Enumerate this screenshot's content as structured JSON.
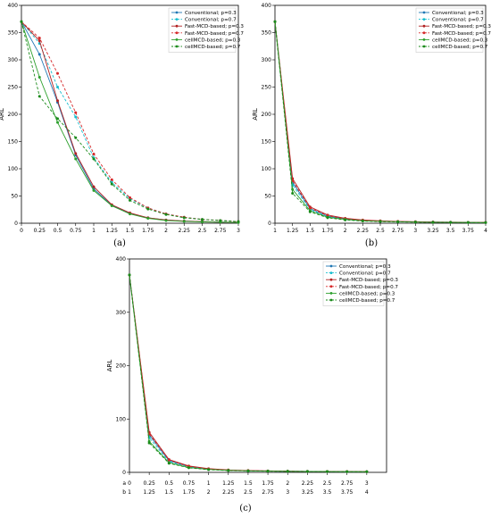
{
  "panel_labels": [
    "(a)",
    "(b)",
    "(c)"
  ],
  "c_row_prefixes": [
    "a",
    "b"
  ],
  "chart_data": [
    {
      "type": "line",
      "title": "",
      "xlabel": "",
      "ylabel": "ARL",
      "xlim": [
        0,
        3
      ],
      "ylim": [
        0,
        400
      ],
      "x": [
        0,
        0.25,
        0.5,
        0.75,
        1,
        1.25,
        1.5,
        1.75,
        2,
        2.25,
        2.5,
        2.75,
        3
      ],
      "xtick_labels": [
        "0",
        "0.25",
        "0.5",
        "0.75",
        "1",
        "1.25",
        "1.5",
        "1.75",
        "2",
        "2.25",
        "2.5",
        "2.75",
        "3"
      ],
      "yticks": [
        0,
        50,
        100,
        150,
        200,
        250,
        300,
        350,
        400
      ],
      "legend_position": "top-right",
      "series": [
        {
          "name": "Conventional; p=0.3",
          "color": "#1f77b4",
          "dashed": false,
          "values": [
            370,
            310,
            222,
            125,
            63,
            33,
            18,
            10,
            6,
            4,
            3,
            2,
            1.5
          ]
        },
        {
          "name": "Conventional; p=0.7",
          "color": "#17becf",
          "dashed": true,
          "values": [
            370,
            330,
            250,
            195,
            120,
            75,
            45,
            28,
            17,
            11,
            7,
            5,
            3
          ]
        },
        {
          "name": "Fast-MCD-based; p=0.3",
          "color": "#b22222",
          "dashed": false,
          "values": [
            370,
            335,
            225,
            128,
            67,
            34,
            19,
            10,
            6,
            4,
            3,
            2,
            1.5
          ]
        },
        {
          "name": "Fast-MCD-based; p=0.7",
          "color": "#d62728",
          "dashed": true,
          "values": [
            370,
            340,
            275,
            203,
            127,
            80,
            47,
            28,
            17,
            11,
            7,
            5,
            3
          ]
        },
        {
          "name": "cellMCD-based; p=0.3",
          "color": "#2ca02c",
          "dashed": false,
          "values": [
            370,
            268,
            185,
            118,
            60,
            32,
            17,
            9,
            5,
            3.5,
            2.5,
            2,
            1.3
          ]
        },
        {
          "name": "cellMCD-based; p=0.7",
          "color": "#1a8a1a",
          "dashed": true,
          "values": [
            370,
            233,
            192,
            157,
            118,
            72,
            42,
            26,
            16,
            10,
            7,
            5,
            3
          ]
        }
      ]
    },
    {
      "type": "line",
      "title": "",
      "xlabel": "",
      "ylabel": "ARL",
      "xlim": [
        1,
        4
      ],
      "ylim": [
        0,
        400
      ],
      "x": [
        1,
        1.25,
        1.5,
        1.75,
        2,
        2.25,
        2.5,
        2.75,
        3,
        3.25,
        3.5,
        3.75,
        4
      ],
      "xtick_labels": [
        "1",
        "1.25",
        "1.5",
        "1.75",
        "2",
        "2.25",
        "2.5",
        "2.75",
        "3",
        "3.25",
        "3.5",
        "3.75",
        "4"
      ],
      "yticks": [
        0,
        50,
        100,
        150,
        200,
        250,
        300,
        350,
        400
      ],
      "legend_position": "top-right",
      "series": [
        {
          "name": "Conventional; p=0.3",
          "color": "#1f77b4",
          "dashed": false,
          "values": [
            370,
            75,
            27,
            13,
            8,
            5,
            4,
            3,
            2.5,
            2,
            1.8,
            1.5,
            1.3
          ]
        },
        {
          "name": "Conventional; p=0.7",
          "color": "#17becf",
          "dashed": true,
          "values": [
            370,
            70,
            25,
            12,
            7,
            5,
            4,
            3,
            2.5,
            2,
            1.8,
            1.5,
            1.3
          ]
        },
        {
          "name": "Fast-MCD-based; p=0.3",
          "color": "#b22222",
          "dashed": false,
          "values": [
            370,
            82,
            30,
            15,
            9,
            6,
            4.5,
            3.5,
            2.8,
            2.2,
            1.9,
            1.6,
            1.4
          ]
        },
        {
          "name": "Fast-MCD-based; p=0.7",
          "color": "#d62728",
          "dashed": true,
          "values": [
            370,
            78,
            28,
            14,
            8,
            5.5,
            4,
            3,
            2.5,
            2,
            1.8,
            1.5,
            1.3
          ]
        },
        {
          "name": "cellMCD-based; p=0.3",
          "color": "#2ca02c",
          "dashed": false,
          "values": [
            370,
            62,
            23,
            11,
            7,
            4.5,
            3.5,
            2.8,
            2.2,
            1.8,
            1.6,
            1.4,
            1.2
          ]
        },
        {
          "name": "cellMCD-based; p=0.7",
          "color": "#1a8a1a",
          "dashed": true,
          "values": [
            370,
            55,
            21,
            10,
            6,
            4,
            3,
            2.5,
            2,
            1.7,
            1.5,
            1.3,
            1.2
          ]
        }
      ]
    },
    {
      "type": "line",
      "title": "",
      "xlabel": "",
      "ylabel": "ARL",
      "xlim": [
        0,
        13
      ],
      "ylim": [
        0,
        400
      ],
      "x": [
        0,
        1,
        2,
        3,
        4,
        5,
        6,
        7,
        8,
        9,
        10,
        11,
        12
      ],
      "xtick_labels_a": [
        "0",
        "0.25",
        "0.5",
        "0.75",
        "1",
        "1.25",
        "1.5",
        "1.75",
        "2",
        "2.25",
        "2.5",
        "2.75",
        "3"
      ],
      "xtick_labels_b": [
        "1",
        "1.25",
        "1.5",
        "1.75",
        "2",
        "2.25",
        "2.5",
        "2.75",
        "3",
        "3.25",
        "3.5",
        "3.75",
        "4"
      ],
      "yticks": [
        0,
        100,
        200,
        300,
        400
      ],
      "legend_position": "top-right",
      "series": [
        {
          "name": "Conventional; p=0.3",
          "color": "#1f77b4",
          "dashed": false,
          "values": [
            370,
            70,
            22,
            11,
            6,
            4,
            3,
            2.5,
            2,
            1.8,
            1.6,
            1.4,
            1.3
          ]
        },
        {
          "name": "Conventional; p=0.7",
          "color": "#17becf",
          "dashed": true,
          "values": [
            370,
            65,
            20,
            10,
            6,
            4,
            3,
            2.5,
            2,
            1.8,
            1.6,
            1.4,
            1.3
          ]
        },
        {
          "name": "Fast-MCD-based; p=0.3",
          "color": "#b22222",
          "dashed": false,
          "values": [
            370,
            75,
            24,
            12,
            7,
            4.5,
            3.5,
            2.8,
            2.2,
            1.9,
            1.7,
            1.5,
            1.3
          ]
        },
        {
          "name": "Fast-MCD-based; p=0.7",
          "color": "#d62728",
          "dashed": true,
          "values": [
            370,
            72,
            23,
            11,
            6.5,
            4.2,
            3.2,
            2.6,
            2.1,
            1.8,
            1.6,
            1.4,
            1.3
          ]
        },
        {
          "name": "cellMCD-based; p=0.3",
          "color": "#2ca02c",
          "dashed": false,
          "values": [
            370,
            58,
            18,
            9,
            5.5,
            3.8,
            2.9,
            2.4,
            2,
            1.7,
            1.5,
            1.3,
            1.2
          ]
        },
        {
          "name": "cellMCD-based; p=0.7",
          "color": "#1a8a1a",
          "dashed": true,
          "values": [
            370,
            55,
            17,
            8.5,
            5,
            3.5,
            2.7,
            2.2,
            1.9,
            1.6,
            1.4,
            1.3,
            1.2
          ]
        }
      ]
    }
  ]
}
